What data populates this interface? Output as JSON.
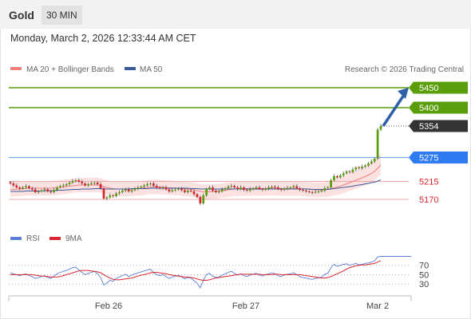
{
  "header": {
    "asset": "Gold",
    "timeframe": "30 MIN",
    "timestamp": "Monday, March 2, 2026 12:33:44 AM CET"
  },
  "legend": {
    "ma20": "MA 20 + Bollinger Bands",
    "ma50": "MA 50",
    "credit": "Research © 2026 Trading Central",
    "rsi": "RSI",
    "ma9": "9MA"
  },
  "colors": {
    "green": "#5a9e0b",
    "blue": "#2f7bf2",
    "red": "#d9262f",
    "dark": "#333333",
    "ma20": "#f08080",
    "ma50": "#3b5a9a",
    "rsi": "#5b7fd6",
    "band": "#fbdcdc"
  },
  "chart_data": {
    "type": "candlestick",
    "x_labels": [
      "Feb 26",
      "Feb 27",
      "Mar 2"
    ],
    "ylim": [
      5120,
      5470
    ],
    "levels": [
      {
        "value": 5450,
        "label": "5450",
        "kind": "resistance",
        "color": "#5a9e0b"
      },
      {
        "value": 5400,
        "label": "5400",
        "kind": "resistance",
        "color": "#5a9e0b"
      },
      {
        "value": 5354,
        "label": "5354",
        "kind": "last",
        "color": "#333333"
      },
      {
        "value": 5275,
        "label": "5275",
        "kind": "pivot",
        "color": "#2f7bf2"
      },
      {
        "value": 5215,
        "label": "5215",
        "kind": "support",
        "color": "#d9262f"
      },
      {
        "value": 5170,
        "label": "5170",
        "kind": "support",
        "color": "#d9262f"
      }
    ],
    "close": [
      5210,
      5205,
      5200,
      5197,
      5200,
      5203,
      5198,
      5195,
      5188,
      5190,
      5192,
      5195,
      5190,
      5188,
      5194,
      5200,
      5203,
      5205,
      5208,
      5212,
      5216,
      5218,
      5214,
      5210,
      5205,
      5208,
      5210,
      5212,
      5208,
      5198,
      5172,
      5175,
      5180,
      5178,
      5185,
      5188,
      5192,
      5195,
      5190,
      5193,
      5197,
      5200,
      5202,
      5205,
      5208,
      5210,
      5204,
      5200,
      5198,
      5200,
      5195,
      5190,
      5193,
      5195,
      5197,
      5193,
      5188,
      5192,
      5190,
      5183,
      5176,
      5160,
      5180,
      5196,
      5200,
      5192,
      5188,
      5190,
      5195,
      5198,
      5202,
      5204,
      5200,
      5196,
      5200,
      5194,
      5192,
      5196,
      5198,
      5200,
      5196,
      5194,
      5197,
      5200,
      5202,
      5200,
      5196,
      5194,
      5197,
      5199,
      5200,
      5203,
      5198,
      5194,
      5192,
      5190,
      5188,
      5187,
      5189,
      5190,
      5192,
      5198,
      5200,
      5218,
      5228,
      5225,
      5230,
      5235,
      5240,
      5238,
      5245,
      5250,
      5248,
      5252,
      5255,
      5260,
      5265,
      5272,
      5345,
      5354
    ],
    "ma20": [
      5194,
      5195,
      5196,
      5196,
      5197,
      5197,
      5198,
      5198,
      5198,
      5198,
      5198,
      5198,
      5198,
      5198,
      5199,
      5199,
      5200,
      5201,
      5202,
      5203,
      5204,
      5205,
      5206,
      5206,
      5206,
      5206,
      5206,
      5206,
      5206,
      5205,
      5202,
      5200,
      5198,
      5197,
      5196,
      5196,
      5196,
      5196,
      5196,
      5196,
      5197,
      5197,
      5198,
      5199,
      5200,
      5201,
      5201,
      5201,
      5201,
      5200,
      5200,
      5199,
      5199,
      5198,
      5198,
      5197,
      5196,
      5196,
      5195,
      5194,
      5192,
      5190,
      5189,
      5189,
      5189,
      5190,
      5190,
      5191,
      5192,
      5193,
      5194,
      5195,
      5196,
      5196,
      5197,
      5197,
      5197,
      5197,
      5197,
      5197,
      5197,
      5197,
      5197,
      5198,
      5198,
      5198,
      5198,
      5197,
      5197,
      5197,
      5197,
      5197,
      5197,
      5197,
      5196,
      5196,
      5195,
      5195,
      5194,
      5194,
      5194,
      5194,
      5195,
      5197,
      5199,
      5201,
      5203,
      5206,
      5209,
      5212,
      5215,
      5218,
      5221,
      5224,
      5227,
      5231,
      5235,
      5240,
      5248,
      5256
    ],
    "ma50": [
      5190,
      5190,
      5190,
      5190,
      5190,
      5191,
      5191,
      5191,
      5191,
      5191,
      5191,
      5192,
      5192,
      5192,
      5192,
      5193,
      5193,
      5193,
      5194,
      5194,
      5195,
      5195,
      5195,
      5196,
      5196,
      5196,
      5196,
      5197,
      5197,
      5197,
      5196,
      5196,
      5196,
      5196,
      5196,
      5196,
      5196,
      5196,
      5196,
      5197,
      5197,
      5197,
      5197,
      5197,
      5197,
      5198,
      5198,
      5198,
      5198,
      5198,
      5198,
      5198,
      5198,
      5198,
      5198,
      5198,
      5198,
      5198,
      5197,
      5197,
      5197,
      5196,
      5196,
      5196,
      5196,
      5196,
      5196,
      5196,
      5196,
      5196,
      5196,
      5196,
      5196,
      5196,
      5196,
      5196,
      5196,
      5196,
      5196,
      5196,
      5196,
      5196,
      5196,
      5196,
      5196,
      5196,
      5196,
      5196,
      5196,
      5196,
      5196,
      5196,
      5196,
      5196,
      5196,
      5196,
      5196,
      5195,
      5195,
      5195,
      5195,
      5195,
      5195,
      5196,
      5197,
      5198,
      5199,
      5200,
      5201,
      5202,
      5203,
      5205,
      5206,
      5207,
      5209,
      5210,
      5212,
      5213,
      5216,
      5219
    ],
    "rsi": {
      "ylim": [
        15,
        95
      ],
      "levels": [
        70,
        50,
        30
      ],
      "rsi": [
        54,
        52,
        50,
        48,
        50,
        52,
        48,
        46,
        42,
        44,
        46,
        48,
        44,
        42,
        47,
        52,
        55,
        57,
        59,
        62,
        65,
        66,
        60,
        55,
        50,
        53,
        55,
        57,
        52,
        44,
        28,
        32,
        38,
        36,
        42,
        45,
        48,
        51,
        46,
        49,
        52,
        54,
        56,
        58,
        60,
        62,
        54,
        50,
        48,
        50,
        46,
        42,
        45,
        47,
        49,
        45,
        41,
        44,
        43,
        37,
        32,
        22,
        38,
        50,
        53,
        47,
        44,
        45,
        49,
        52,
        55,
        57,
        53,
        49,
        52,
        48,
        46,
        49,
        51,
        53,
        49,
        47,
        50,
        52,
        54,
        52,
        48,
        46,
        49,
        51,
        52,
        54,
        50,
        46,
        44,
        43,
        41,
        40,
        42,
        43,
        45,
        51,
        53,
        65,
        72,
        68,
        70,
        72,
        73,
        70,
        72,
        74,
        71,
        72,
        74,
        75,
        77,
        79,
        88,
        89
      ],
      "ma9": [
        50,
        50,
        50,
        50,
        50,
        50,
        50,
        50,
        49,
        48,
        47,
        47,
        46,
        45,
        45,
        45,
        46,
        48,
        50,
        52,
        54,
        56,
        58,
        59,
        59,
        59,
        58,
        57,
        56,
        54,
        50,
        46,
        43,
        40,
        39,
        39,
        40,
        41,
        42,
        43,
        45,
        47,
        49,
        50,
        52,
        54,
        55,
        55,
        54,
        53,
        52,
        50,
        49,
        48,
        47,
        46,
        45,
        45,
        44,
        43,
        41,
        39,
        38,
        38,
        39,
        41,
        43,
        44,
        45,
        46,
        47,
        48,
        49,
        50,
        51,
        51,
        51,
        51,
        51,
        51,
        51,
        50,
        50,
        50,
        50,
        51,
        51,
        50,
        50,
        50,
        50,
        50,
        50,
        50,
        49,
        48,
        47,
        46,
        45,
        44,
        43,
        43,
        44,
        46,
        49,
        52,
        55,
        58,
        62,
        65,
        67,
        69,
        70,
        71,
        71,
        72,
        73,
        74,
        77,
        80
      ]
    }
  }
}
